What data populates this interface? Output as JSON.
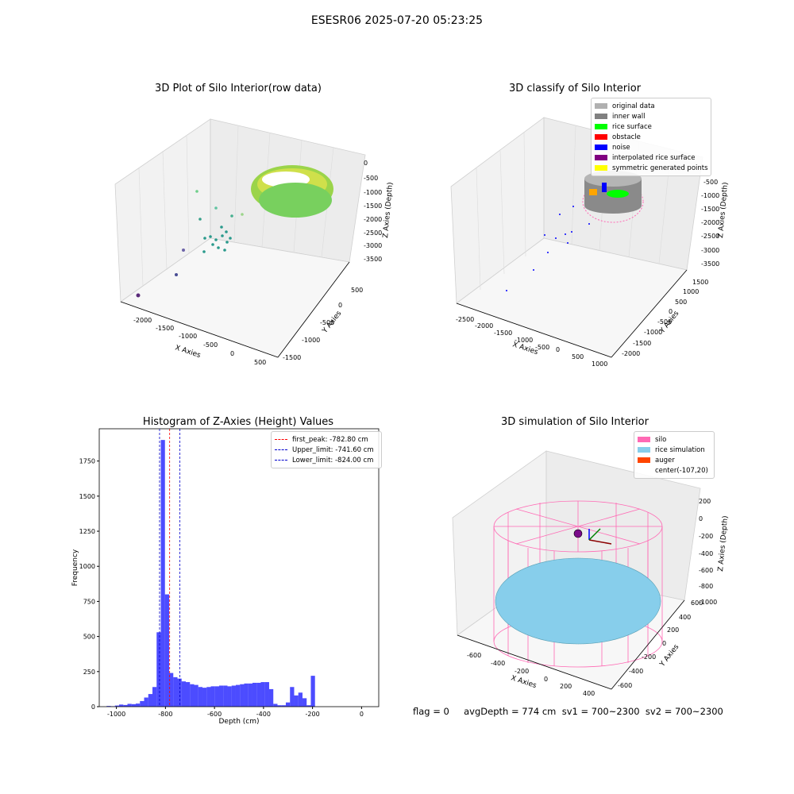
{
  "suptitle": "ESESR06 2025-07-20 05:23:25",
  "footer": "flag = 0     avgDepth = 774 cm  sv1 = 700~2300  sv2 = 700~2300",
  "chart_data": [
    {
      "type": "scatter",
      "title": "3D Plot of Silo Interior(row data)",
      "xlabel": "X Axies",
      "ylabel": "Y Axies",
      "zlabel": "Z Axies (Depth)",
      "x_ticks": [
        "-2000",
        "-1500",
        "-1000",
        "-500",
        "0",
        "500"
      ],
      "y_ticks": [
        "-1500",
        "-1000",
        "-500",
        "0",
        "500"
      ],
      "z_ticks": [
        "0",
        "-500",
        "-1000",
        "-1500",
        "-2000",
        "-2500",
        "-3000",
        "-3500"
      ],
      "colormap": "viridis",
      "approx_points": [
        {
          "x": -2000,
          "y": -1500,
          "z": -3200
        },
        {
          "x": -1300,
          "y": -800,
          "z": -2600
        },
        {
          "x": -1300,
          "y": -500,
          "z": -2600
        },
        {
          "x": -1000,
          "y": -500,
          "z": -2300
        },
        {
          "x": -900,
          "y": -300,
          "z": -2300
        },
        {
          "x": -800,
          "y": -200,
          "z": -2200
        }
      ]
    },
    {
      "type": "scatter",
      "title": "3D classify of Silo Interior",
      "xlabel": "X Axies",
      "ylabel": "Y Axies",
      "zlabel": "Z Axies (Depth)",
      "x_ticks": [
        "-2500",
        "-2000",
        "-1500",
        "-1000",
        "-500",
        "0",
        "500",
        "1000"
      ],
      "y_ticks": [
        "-2000",
        "-1500",
        "-1000",
        "-500",
        "0",
        "500",
        "1000",
        "1500"
      ],
      "z_ticks": [
        "-500",
        "-1000",
        "-1500",
        "-2000",
        "-2500",
        "-3000",
        "-3500"
      ],
      "legend": [
        {
          "label": "original data",
          "color": "#b0b0b0"
        },
        {
          "label": "inner wall",
          "color": "#808080"
        },
        {
          "label": "rice surface",
          "color": "#00ff00"
        },
        {
          "label": "obstacle",
          "color": "#ff0000"
        },
        {
          "label": "noise",
          "color": "#0000ff"
        },
        {
          "label": "interpolated rice surface",
          "color": "#800080"
        },
        {
          "label": "symmetric generated points",
          "color": "#ffff00"
        }
      ]
    },
    {
      "type": "bar",
      "title": "Histogram of Z-Axies (Height) Values",
      "xlabel": "Depth (cm)",
      "ylabel": "Frequency",
      "xlim": [
        -1070,
        70
      ],
      "ylim": [
        0,
        1980
      ],
      "x_ticks": [
        -1000,
        -800,
        -600,
        -400,
        -200,
        0
      ],
      "y_ticks": [
        0,
        250,
        500,
        750,
        1000,
        1250,
        1500,
        1750
      ],
      "bin_width": 17,
      "bins": [
        [
          -1040,
          5
        ],
        [
          -1023,
          3
        ],
        [
          -1006,
          8
        ],
        [
          -989,
          15
        ],
        [
          -972,
          12
        ],
        [
          -955,
          20
        ],
        [
          -938,
          18
        ],
        [
          -921,
          22
        ],
        [
          -904,
          40
        ],
        [
          -887,
          65
        ],
        [
          -870,
          90
        ],
        [
          -853,
          140
        ],
        [
          -836,
          530
        ],
        [
          -819,
          1900
        ],
        [
          -802,
          800
        ],
        [
          -785,
          240
        ],
        [
          -768,
          210
        ],
        [
          -751,
          200
        ],
        [
          -734,
          180
        ],
        [
          -717,
          175
        ],
        [
          -700,
          160
        ],
        [
          -683,
          155
        ],
        [
          -666,
          140
        ],
        [
          -649,
          135
        ],
        [
          -632,
          140
        ],
        [
          -615,
          145
        ],
        [
          -598,
          145
        ],
        [
          -581,
          150
        ],
        [
          -564,
          150
        ],
        [
          -547,
          145
        ],
        [
          -530,
          150
        ],
        [
          -513,
          155
        ],
        [
          -496,
          160
        ],
        [
          -479,
          165
        ],
        [
          -462,
          165
        ],
        [
          -445,
          170
        ],
        [
          -428,
          170
        ],
        [
          -411,
          175
        ],
        [
          -394,
          175
        ],
        [
          -377,
          125
        ],
        [
          -360,
          20
        ],
        [
          -343,
          10
        ],
        [
          -326,
          10
        ],
        [
          -309,
          30
        ],
        [
          -292,
          140
        ],
        [
          -275,
          80
        ],
        [
          -258,
          100
        ],
        [
          -241,
          60
        ],
        [
          -224,
          10
        ],
        [
          -207,
          220
        ]
      ],
      "vlines": [
        {
          "label": "first_peak: -782.80 cm",
          "x": -782.8,
          "color": "#ff0000"
        },
        {
          "label": "Upper_limit: -741.60 cm",
          "x": -741.6,
          "color": "#0000cc"
        },
        {
          "label": "Lower_limit: -824.00 cm",
          "x": -824.0,
          "color": "#0000cc"
        }
      ],
      "bar_color": "#0000ff"
    },
    {
      "type": "scatter",
      "title": "3D simulation of Silo Interior",
      "xlabel": "X Axies",
      "ylabel": "Y Axies",
      "zlabel": "Z Axies (Depth)",
      "x_ticks": [
        "-600",
        "-400",
        "-200",
        "0",
        "200",
        "400"
      ],
      "y_ticks": [
        "-600",
        "-400",
        "-200",
        "0",
        "200",
        "400",
        "600"
      ],
      "z_ticks": [
        "200",
        "0",
        "-200",
        "-400",
        "-600",
        "-800",
        "-1000"
      ],
      "legend": [
        {
          "label": "silo",
          "color": "#ff69b4"
        },
        {
          "label": "rice simulation",
          "color": "#87ceeb"
        },
        {
          "label": "auger",
          "color": "#ff4500"
        },
        {
          "label": "center(-107,20)",
          "color": ""
        }
      ]
    }
  ]
}
